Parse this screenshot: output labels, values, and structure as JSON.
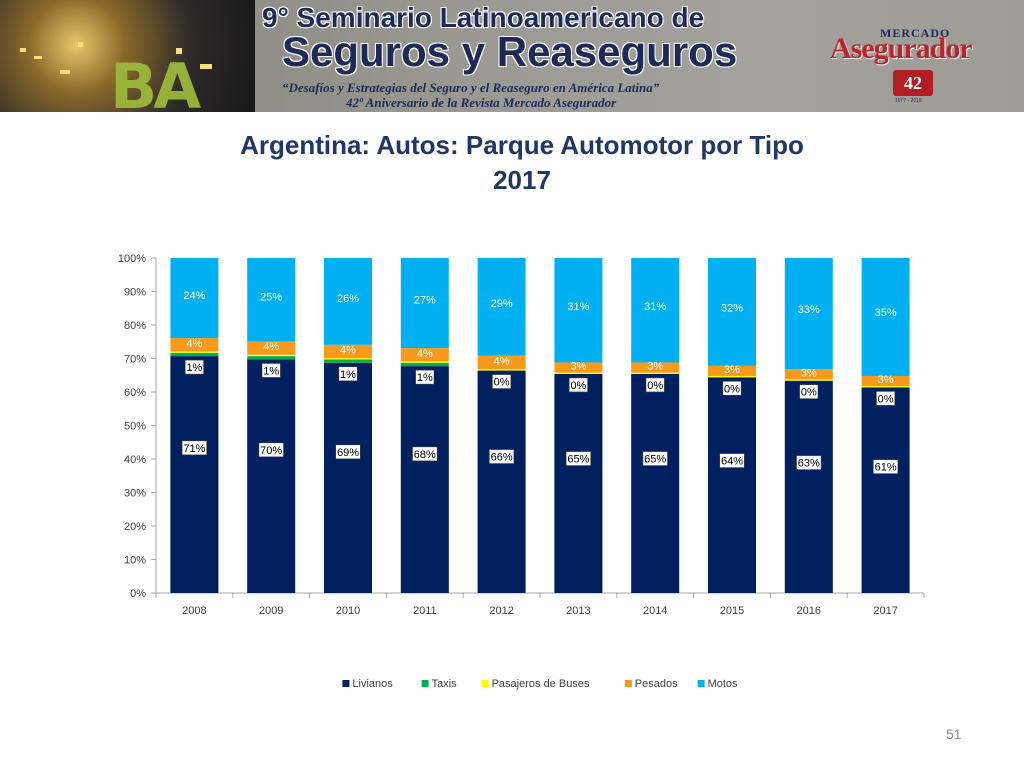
{
  "banner": {
    "title_line1": "9° Seminario Latinoamericano de",
    "title_line2": "Seguros y Reaseguros",
    "subtitle_line1": "“Desafíos y Estrategias del Seguro y el Reaseguro en América Latina”",
    "subtitle_line2": "42º Aniversario de la Revista Mercado Asegurador",
    "photo_text": "BA",
    "logo_top": "MERCADO",
    "logo_main": "Asegurador",
    "logo_seal": "42",
    "logo_years": "1977 - 2019",
    "colors": {
      "title": "#1d2a57",
      "logo_red": "#c0222a"
    }
  },
  "chart_data": {
    "type": "bar",
    "stacked": "percent",
    "title": "Argentina: Autos: Parque Automotor por Tipo",
    "subtitle": "2017",
    "categories": [
      "2008",
      "2009",
      "2010",
      "2011",
      "2012",
      "2013",
      "2014",
      "2015",
      "2016",
      "2017"
    ],
    "series": [
      {
        "name": "Livianos",
        "color": "#002060",
        "values": [
          71,
          70,
          69,
          68,
          66,
          65,
          65,
          64,
          63,
          61
        ],
        "labels": [
          "71%",
          "70%",
          "69%",
          "68%",
          "66%",
          "65%",
          "65%",
          "64%",
          "63%",
          "61%"
        ],
        "label_color": "#000000"
      },
      {
        "name": "Taxis",
        "color": "#00b050",
        "values": [
          1,
          1,
          1,
          1,
          0,
          0,
          0,
          0,
          0,
          0
        ],
        "labels": [
          "1%",
          "1%",
          "1%",
          "1%",
          "0%",
          "0%",
          "0%",
          "0%",
          "0%",
          "0%"
        ],
        "label_color": "#000000"
      },
      {
        "name": "Pasajeros de Buses",
        "color": "#ffff00",
        "values": [
          0.4,
          0.4,
          0.4,
          0.4,
          0.4,
          0.4,
          0.4,
          0.4,
          0.4,
          0.4
        ],
        "labels": [],
        "label_color": "#000000"
      },
      {
        "name": "Pesados",
        "color": "#f79a1c",
        "values": [
          4,
          4,
          4,
          4,
          4,
          3,
          3,
          3,
          3,
          3
        ],
        "labels": [
          "4%",
          "4%",
          "4%",
          "4%",
          "4%",
          "3%",
          "3%",
          "3%",
          "3%",
          "3%"
        ],
        "label_color": "#ffffff"
      },
      {
        "name": "Motos",
        "color": "#00b0f0",
        "values": [
          24,
          25,
          26,
          27,
          29,
          31,
          31,
          32,
          33,
          35
        ],
        "labels": [
          "24%",
          "25%",
          "26%",
          "27%",
          "29%",
          "31%",
          "31%",
          "32%",
          "33%",
          "35%"
        ],
        "label_color": "#ffffff"
      }
    ],
    "y_ticks": [
      "0%",
      "10%",
      "20%",
      "30%",
      "40%",
      "50%",
      "60%",
      "70%",
      "80%",
      "90%",
      "100%"
    ],
    "ylim": [
      0,
      100
    ],
    "grid": false,
    "legend": "bottom"
  },
  "footer": {
    "page_number": "51"
  }
}
